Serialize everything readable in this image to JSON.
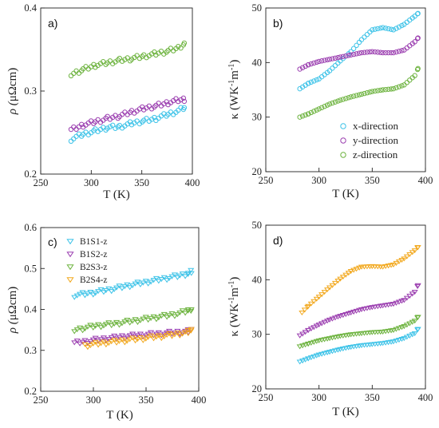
{
  "chart_data": [
    {
      "panel_label": "a)",
      "type": "scatter",
      "xlabel": "T (K)",
      "ylabel_main": "ρ (",
      "ylabel_unit": "μΩcm",
      "ylabel_close": ")",
      "xlim": [
        250,
        400
      ],
      "ylim": [
        0.2,
        0.4
      ],
      "xticks": [
        250,
        300,
        350,
        400
      ],
      "yticks": [
        0.2,
        0.3,
        0.4
      ],
      "ytick_labels": [
        "0.2",
        "0.3",
        "0.4"
      ],
      "marker": "circle",
      "series": [
        {
          "color": "#3ec3e8",
          "x": [
            280,
            292,
            304,
            316,
            328,
            340,
            352,
            364,
            376,
            386,
            392
          ],
          "y": [
            0.242,
            0.248,
            0.252,
            0.256,
            0.257,
            0.261,
            0.264,
            0.267,
            0.272,
            0.276,
            0.28
          ]
        },
        {
          "color": "#9b3fb0",
          "x": [
            280,
            292,
            304,
            316,
            328,
            340,
            352,
            364,
            376,
            386,
            392
          ],
          "y": [
            0.253,
            0.259,
            0.263,
            0.267,
            0.27,
            0.275,
            0.279,
            0.282,
            0.286,
            0.289,
            0.29
          ]
        },
        {
          "color": "#6db33f",
          "x": [
            280,
            292,
            304,
            316,
            328,
            340,
            352,
            364,
            376,
            386,
            392
          ],
          "y": [
            0.32,
            0.326,
            0.331,
            0.334,
            0.337,
            0.339,
            0.342,
            0.345,
            0.348,
            0.352,
            0.357
          ]
        }
      ]
    },
    {
      "panel_label": "b)",
      "type": "scatter",
      "xlabel": "T (K)",
      "ylabel_main": "κ (WK",
      "ylabel_sup1": "-1",
      "ylabel_mid": "m",
      "ylabel_sup2": "-1",
      "ylabel_close": ")",
      "xlim": [
        250,
        400
      ],
      "ylim": [
        20,
        50
      ],
      "xticks": [
        250,
        300,
        350,
        400
      ],
      "yticks": [
        20,
        30,
        40,
        50
      ],
      "ytick_labels": [
        "20",
        "30",
        "40",
        "50"
      ],
      "marker": "circle",
      "legend": [
        "x-direction",
        "y-direction",
        "z-direction"
      ],
      "legend_position": "bottom-right",
      "series": [
        {
          "color": "#3ec3e8",
          "x": [
            282,
            290,
            300,
            310,
            320,
            330,
            340,
            350,
            360,
            370,
            380,
            390,
            393
          ],
          "y": [
            35.2,
            36.2,
            37.0,
            38.5,
            40.3,
            42.0,
            44.2,
            46.0,
            46.4,
            46.0,
            47.0,
            48.5,
            49.0
          ]
        },
        {
          "color": "#9b3fb0",
          "x": [
            282,
            290,
            300,
            310,
            320,
            330,
            340,
            350,
            360,
            370,
            380,
            390,
            393
          ],
          "y": [
            38.8,
            39.6,
            40.2,
            40.6,
            41.0,
            41.4,
            41.8,
            42.0,
            41.8,
            41.8,
            42.3,
            43.8,
            44.5
          ]
        },
        {
          "color": "#6db33f",
          "x": [
            282,
            290,
            300,
            310,
            320,
            330,
            340,
            350,
            360,
            370,
            380,
            390,
            393
          ],
          "y": [
            30.0,
            30.6,
            31.5,
            32.4,
            33.1,
            33.7,
            34.2,
            34.7,
            35.0,
            35.2,
            35.9,
            37.6,
            38.9
          ]
        }
      ]
    },
    {
      "panel_label": "c)",
      "type": "scatter",
      "xlabel": "T (K)",
      "ylabel_main": "ρ (",
      "ylabel_unit": "μΩcm",
      "ylabel_close": ")",
      "xlim": [
        250,
        400
      ],
      "ylim": [
        0.2,
        0.6
      ],
      "xticks": [
        250,
        300,
        350,
        400
      ],
      "yticks": [
        0.2,
        0.3,
        0.4,
        0.5,
        0.6
      ],
      "ytick_labels": [
        "0.2",
        "0.3",
        "0.4",
        "0.5",
        "0.6"
      ],
      "marker": "triangle-down",
      "legend": [
        "B1S1-z",
        "B1S2-z",
        "B2S3-z",
        "B2S4-z"
      ],
      "legend_position": "top-left",
      "series": [
        {
          "color": "#3ec3e8",
          "x": [
            282,
            292,
            302,
            312,
            322,
            332,
            342,
            352,
            362,
            372,
            382,
            390,
            393
          ],
          "y": [
            0.435,
            0.438,
            0.442,
            0.447,
            0.452,
            0.458,
            0.463,
            0.468,
            0.473,
            0.478,
            0.483,
            0.488,
            0.492
          ]
        },
        {
          "color": "#9b3fb0",
          "x": [
            282,
            292,
            302,
            312,
            322,
            332,
            342,
            352,
            362,
            372,
            382,
            390,
            393
          ],
          "y": [
            0.318,
            0.322,
            0.326,
            0.329,
            0.332,
            0.335,
            0.337,
            0.339,
            0.341,
            0.343,
            0.345,
            0.347,
            0.349
          ]
        },
        {
          "color": "#6db33f",
          "x": [
            282,
            292,
            302,
            312,
            322,
            332,
            342,
            352,
            362,
            372,
            382,
            390,
            393
          ],
          "y": [
            0.35,
            0.355,
            0.36,
            0.363,
            0.366,
            0.37,
            0.374,
            0.378,
            0.382,
            0.386,
            0.391,
            0.397,
            0.402
          ]
        },
        {
          "color": "#f2a81d",
          "x": [
            292,
            302,
            312,
            322,
            332,
            342,
            352,
            362,
            372,
            382,
            390,
            393
          ],
          "y": [
            0.312,
            0.316,
            0.319,
            0.322,
            0.325,
            0.328,
            0.331,
            0.334,
            0.337,
            0.341,
            0.345,
            0.349
          ]
        }
      ]
    },
    {
      "panel_label": "d)",
      "type": "scatter",
      "xlabel": "T (K)",
      "ylabel_main": "κ (WK",
      "ylabel_sup1": "-1",
      "ylabel_mid": "m",
      "ylabel_sup2": "-1",
      "ylabel_close": ")",
      "xlim": [
        250,
        400
      ],
      "ylim": [
        20,
        50
      ],
      "xticks": [
        250,
        300,
        350,
        400
      ],
      "yticks": [
        20,
        30,
        40,
        50
      ],
      "ytick_labels": [
        "20",
        "30",
        "40",
        "50"
      ],
      "marker": "triangle-down",
      "series": [
        {
          "color": "#3ec3e8",
          "x": [
            282,
            290,
            300,
            310,
            320,
            330,
            340,
            350,
            360,
            370,
            380,
            390,
            393
          ],
          "y": [
            25.0,
            25.6,
            26.3,
            26.8,
            27.3,
            27.7,
            28.0,
            28.2,
            28.4,
            28.7,
            29.3,
            30.2,
            31.0
          ]
        },
        {
          "color": "#9b3fb0",
          "x": [
            282,
            290,
            300,
            310,
            320,
            330,
            340,
            350,
            360,
            370,
            380,
            390,
            393
          ],
          "y": [
            29.8,
            30.8,
            31.8,
            32.7,
            33.4,
            34.0,
            34.6,
            35.0,
            35.3,
            35.6,
            36.3,
            37.8,
            39.0
          ]
        },
        {
          "color": "#6db33f",
          "x": [
            282,
            290,
            300,
            310,
            320,
            330,
            340,
            350,
            360,
            370,
            380,
            390,
            393
          ],
          "y": [
            27.8,
            28.3,
            28.9,
            29.3,
            29.7,
            30.0,
            30.2,
            30.4,
            30.5,
            30.8,
            31.5,
            32.5,
            33.2
          ]
        },
        {
          "color": "#f2a81d",
          "x": [
            284,
            290,
            300,
            310,
            320,
            330,
            340,
            350,
            360,
            370,
            380,
            390,
            393
          ],
          "y": [
            34.0,
            35.2,
            36.9,
            38.6,
            40.2,
            41.6,
            42.4,
            42.5,
            42.4,
            42.8,
            43.9,
            45.4,
            46.0
          ]
        }
      ]
    }
  ]
}
